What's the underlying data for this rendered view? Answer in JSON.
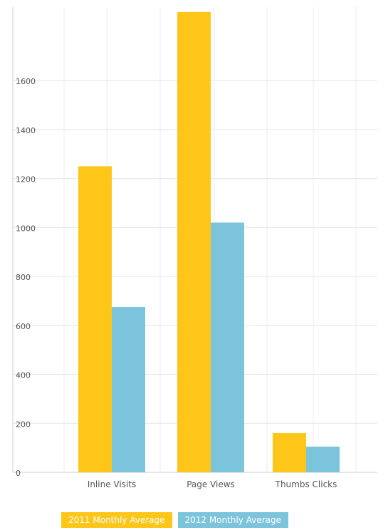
{
  "chart_data": {
    "type": "bar",
    "categories": [
      "Inline Visits",
      "Page Views",
      "Thumbs Clicks"
    ],
    "series": [
      {
        "name": "2011 Monthly Average",
        "color": "#FFC61A",
        "values": [
          1250,
          1880,
          160
        ]
      },
      {
        "name": "2012 Monthly Average",
        "color": "#7CC4DC",
        "values": [
          675,
          1020,
          105
        ]
      }
    ],
    "y_ticks": [
      "0",
      "200",
      "400",
      "600",
      "800",
      "1000",
      "1200",
      "1400",
      "1600"
    ],
    "ylim": [
      0,
      1900
    ],
    "title": "",
    "xlabel": "",
    "ylabel": "",
    "grid": true,
    "legend_position": "bottom"
  }
}
